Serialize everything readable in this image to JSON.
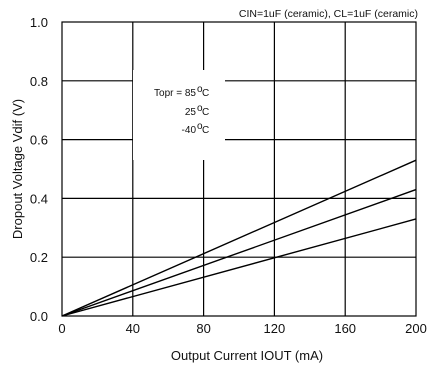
{
  "chart_data": {
    "type": "line",
    "title": "",
    "xlabel": "Output Current IOUT (mA)",
    "ylabel": "Dropout Voltage Vdif (V)",
    "xlim": [
      0,
      200
    ],
    "ylim": [
      0,
      1.0
    ],
    "x_ticks": [
      0,
      40,
      80,
      120,
      160,
      200
    ],
    "y_ticks": [
      0.0,
      0.2,
      0.4,
      0.6,
      0.8,
      1.0
    ],
    "x_tick_labels": [
      "0",
      "40",
      "80",
      "120",
      "160",
      "200"
    ],
    "y_tick_labels": [
      "0.0",
      "0.2",
      "0.4",
      "0.6",
      "0.8",
      "1.0"
    ],
    "grid": true,
    "condition_note": "CIN=1uF (ceramic), CL=1uF (ceramic)",
    "annotation": {
      "prefix": "Topr = ",
      "lines": [
        "85",
        "25",
        "-40"
      ],
      "unit": "C",
      "degree": "o"
    },
    "series": [
      {
        "x": [
          0,
          200
        ],
        "y": [
          0.0,
          0.53
        ]
      },
      {
        "x": [
          0,
          200
        ],
        "y": [
          0.0,
          0.43
        ]
      },
      {
        "x": [
          0,
          200
        ],
        "y": [
          0.0,
          0.33
        ]
      }
    ]
  }
}
